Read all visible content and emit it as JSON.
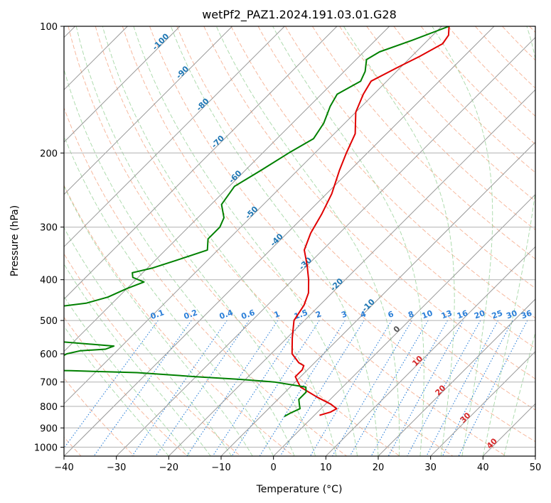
{
  "chart_data": {
    "type": "line",
    "title": "wetPf2_PAZ1.2024.191.03.01.G28",
    "xlabel": "Temperature (°C)",
    "ylabel": "Pressure (hPa)",
    "xlim": [
      -40,
      50
    ],
    "ylim": [
      1050,
      100
    ],
    "y_scale": "log",
    "x_ticks": [
      -40,
      -30,
      -20,
      -10,
      0,
      10,
      20,
      30,
      40,
      50
    ],
    "y_ticks": [
      100,
      200,
      300,
      400,
      500,
      600,
      700,
      800,
      900,
      1000
    ],
    "grid": true,
    "colors": {
      "temperature": "#e00000",
      "dewpoint": "#008000",
      "isotherm": "#999999",
      "dry_adiabat": "#f4a582",
      "moist_adiabat": "#98d198",
      "mixing_ratio": "#2b7fd8",
      "label_blue": "#1f77b4",
      "label_red": "#d62728"
    },
    "isotherm_labels": [
      {
        "value": "-100",
        "t": -100,
        "p": 110
      },
      {
        "value": "-90",
        "t": -90,
        "p": 130
      },
      {
        "value": "-80",
        "t": -80,
        "p": 155
      },
      {
        "value": "-70",
        "t": -70,
        "p": 190
      },
      {
        "value": "-60",
        "t": -60,
        "p": 230
      },
      {
        "value": "-50",
        "t": -50,
        "p": 280
      },
      {
        "value": "-40",
        "t": -40,
        "p": 325
      },
      {
        "value": "-30",
        "t": -30,
        "p": 370
      },
      {
        "value": "-20",
        "t": -20,
        "p": 415
      },
      {
        "value": "-10",
        "t": -10,
        "p": 465
      },
      {
        "value": "0",
        "t": 0,
        "p": 530
      },
      {
        "value": "10",
        "t": 10,
        "p": 630
      },
      {
        "value": "20",
        "t": 20,
        "p": 740
      },
      {
        "value": "30",
        "t": 30,
        "p": 860
      },
      {
        "value": "40",
        "t": 40,
        "p": 990
      }
    ],
    "mixing_ratio_labels": [
      "0.1",
      "0.2",
      "0.4",
      "0.6",
      "1",
      "1.5",
      "2",
      "3",
      "4",
      "6",
      "8",
      "10",
      "13",
      "16",
      "20",
      "25",
      "30",
      "36"
    ],
    "series": [
      {
        "role": "temperature",
        "points": [
          [
            -48.6,
            100
          ],
          [
            -47.0,
            105
          ],
          [
            -46.5,
            110
          ],
          [
            -48.5,
            118
          ],
          [
            -50.5,
            125
          ],
          [
            -53.0,
            135
          ],
          [
            -52.0,
            145
          ],
          [
            -50.0,
            160
          ],
          [
            -46.0,
            180
          ],
          [
            -44.0,
            200
          ],
          [
            -42.0,
            220
          ],
          [
            -39.0,
            250
          ],
          [
            -37.0,
            280
          ],
          [
            -35.5,
            310
          ],
          [
            -33.5,
            340
          ],
          [
            -30.0,
            370
          ],
          [
            -27.0,
            400
          ],
          [
            -24.5,
            430
          ],
          [
            -23.0,
            460
          ],
          [
            -22.0,
            500
          ],
          [
            -19.0,
            550
          ],
          [
            -16.0,
            600
          ],
          [
            -13.0,
            630
          ],
          [
            -11.5,
            640
          ],
          [
            -11.0,
            655
          ],
          [
            -11.0,
            680
          ],
          [
            -9.5,
            700
          ],
          [
            -8.0,
            720
          ],
          [
            -3.0,
            760
          ],
          [
            1.0,
            790
          ],
          [
            3.0,
            810
          ],
          [
            2.5,
            825
          ],
          [
            1.0,
            840
          ]
        ]
      },
      {
        "role": "dewpoint",
        "points": [
          [
            -48.6,
            100
          ],
          [
            -53.0,
            108
          ],
          [
            -57.0,
            115
          ],
          [
            -58.0,
            120
          ],
          [
            -56.0,
            128
          ],
          [
            -55.0,
            135
          ],
          [
            -57.0,
            145
          ],
          [
            -56.0,
            155
          ],
          [
            -54.0,
            170
          ],
          [
            -53.0,
            185
          ],
          [
            -55.0,
            200
          ],
          [
            -57.0,
            220
          ],
          [
            -59.0,
            240
          ],
          [
            -58.0,
            265
          ],
          [
            -55.0,
            285
          ],
          [
            -54.0,
            300
          ],
          [
            -54.0,
            320
          ],
          [
            -52.0,
            340
          ],
          [
            -56.0,
            360
          ],
          [
            -59.0,
            375
          ],
          [
            -62.0,
            385
          ],
          [
            -61.0,
            395
          ],
          [
            -58.0,
            405
          ],
          [
            -60.0,
            420
          ],
          [
            -62.0,
            440
          ],
          [
            -65.0,
            455
          ],
          [
            -73.0,
            470
          ],
          [
            -90.0,
            490
          ],
          [
            -103.0,
            500
          ],
          [
            -88.0,
            520
          ],
          [
            -68.0,
            555
          ],
          [
            -51.5,
            575
          ],
          [
            -52.5,
            585
          ],
          [
            -57.0,
            590
          ],
          [
            -59.0,
            600
          ],
          [
            -60.0,
            620
          ],
          [
            -60.5,
            630
          ],
          [
            -62.5,
            635
          ],
          [
            -66.0,
            638
          ],
          [
            -72.0,
            642
          ],
          [
            -82.0,
            646
          ],
          [
            -87.0,
            648
          ],
          [
            -76.0,
            652
          ],
          [
            -55.0,
            658
          ],
          [
            -42.0,
            665
          ],
          [
            -30.0,
            680
          ],
          [
            -21.0,
            690
          ],
          [
            -14.0,
            700
          ],
          [
            -7.0,
            720
          ],
          [
            -6.0,
            740
          ],
          [
            -6.0,
            770
          ],
          [
            -5.0,
            790
          ],
          [
            -4.0,
            810
          ],
          [
            -5.0,
            830
          ],
          [
            -5.5,
            845
          ]
        ]
      }
    ]
  }
}
